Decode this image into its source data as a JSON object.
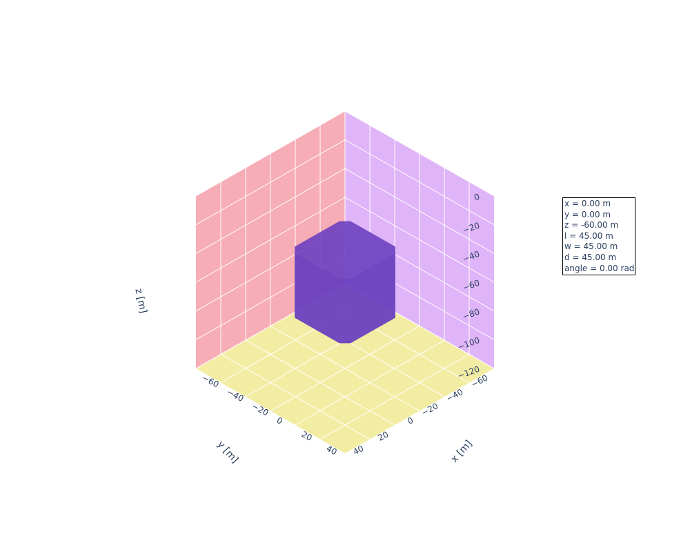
{
  "info_box": {
    "lines": [
      "x = 0.00 m",
      "y = 0.00 m",
      "z = -60.00 m",
      "l = 45.00 m",
      "w = 45.00 m",
      "d = 45.00 m",
      "angle = 0.00 rad"
    ]
  },
  "chart_data": {
    "type": "mesh3d",
    "title": "",
    "axes": {
      "x": {
        "title": "x [m]",
        "range": [
          -60,
          60
        ],
        "tick_labels": [
          "−60",
          "−40",
          "−20",
          "0",
          "20",
          "40"
        ],
        "tick_values": [
          -60,
          -40,
          -20,
          0,
          20,
          40
        ]
      },
      "y": {
        "title": "y [m]",
        "range": [
          -60,
          60
        ],
        "tick_labels": [
          "−60",
          "−40",
          "−20",
          "0",
          "20",
          "40"
        ],
        "tick_values": [
          -60,
          -40,
          -20,
          0,
          20,
          40
        ]
      },
      "z": {
        "title": "z [m]",
        "range": [
          -120,
          0
        ],
        "tick_labels": [
          "0",
          "−20",
          "−40",
          "−60",
          "−80",
          "−100",
          "−120"
        ],
        "tick_values": [
          0,
          -20,
          -40,
          -60,
          -80,
          -100,
          -120
        ]
      }
    },
    "object": {
      "shape": "box",
      "center": {
        "x": 0,
        "y": 0,
        "z": -60
      },
      "l": 45,
      "w": 45,
      "d": 45,
      "angle": 0,
      "color": "#6a3fbf"
    },
    "colors": {
      "x_wall": "#f7adb6",
      "y_wall": "#e0b4f8",
      "floor": "#f3eda4",
      "grid": "#ffffff",
      "text": "#2a3f5f"
    }
  }
}
